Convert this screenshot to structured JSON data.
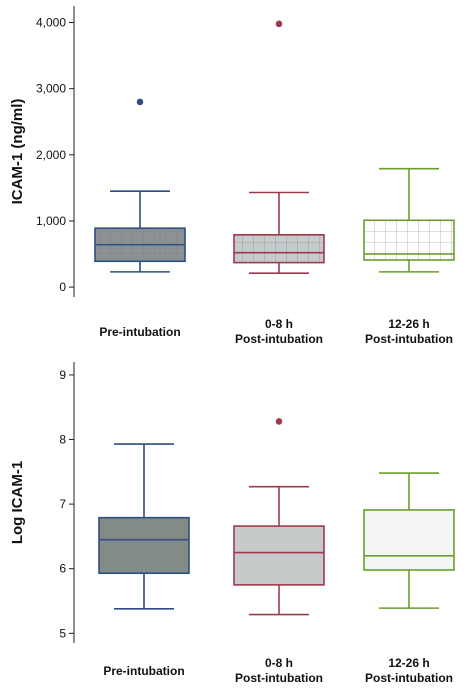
{
  "chart_data": [
    {
      "type": "box",
      "title": "",
      "xlabel": "",
      "ylabel": "ICAM-1 (ng/ml)",
      "ylim": [
        -150,
        4250
      ],
      "yticks": [
        0,
        1000,
        2000,
        3000,
        4000
      ],
      "ytick_labels": [
        "0",
        "1,000",
        "2,000",
        "3,000",
        "4,000"
      ],
      "grid": false,
      "categories": [
        {
          "line1": "Pre-intubation",
          "line2": ""
        },
        {
          "line1": "0-8 h",
          "line2": "Post-intubation"
        },
        {
          "line1": "12-26 h",
          "line2": "Post-intubation"
        }
      ],
      "boxes": [
        {
          "whisker_low": 230,
          "q1": 390,
          "median": 640,
          "q3": 890,
          "whisker_high": 1450,
          "outliers": [
            2800
          ],
          "color": "#2e4d85",
          "fill": "#8c9294",
          "pattern": "grid"
        },
        {
          "whisker_low": 210,
          "q1": 370,
          "median": 520,
          "q3": 790,
          "whisker_high": 1430,
          "outliers": [
            3980
          ],
          "color": "#9e3a4c",
          "fill": "#c6cacb",
          "pattern": "grid"
        },
        {
          "whisker_low": 230,
          "q1": 410,
          "median": 500,
          "q3": 1010,
          "whisker_high": 1790,
          "outliers": [],
          "color": "#6a9e2c",
          "fill": "#ffffff",
          "pattern": "grid"
        }
      ]
    },
    {
      "type": "box",
      "title": "",
      "xlabel": "",
      "ylabel": "Log ICAM-1",
      "ylim": [
        4.85,
        9.2
      ],
      "yticks": [
        5,
        6,
        7,
        8,
        9
      ],
      "ytick_labels": [
        "5",
        "6",
        "7",
        "8",
        "9"
      ],
      "grid": false,
      "categories": [
        {
          "line1": "Pre-intubation",
          "line2": ""
        },
        {
          "line1": "0-8 h",
          "line2": "Post-intubation"
        },
        {
          "line1": "12-26 h",
          "line2": "Post-intubation"
        }
      ],
      "boxes": [
        {
          "whisker_low": 5.38,
          "q1": 5.93,
          "median": 6.45,
          "q3": 6.79,
          "whisker_high": 7.93,
          "outliers": [],
          "color": "#2e4d85",
          "fill": "#838b87",
          "pattern": "none"
        },
        {
          "whisker_low": 5.29,
          "q1": 5.75,
          "median": 6.25,
          "q3": 6.66,
          "whisker_high": 7.27,
          "outliers": [
            8.28
          ],
          "color": "#9e3a4c",
          "fill": "#c6cacb",
          "pattern": "none"
        },
        {
          "whisker_low": 5.39,
          "q1": 5.98,
          "median": 6.2,
          "q3": 6.91,
          "whisker_high": 7.48,
          "outliers": [],
          "color": "#6a9e2c",
          "fill": "#f4f6f6",
          "pattern": "none"
        }
      ]
    }
  ]
}
